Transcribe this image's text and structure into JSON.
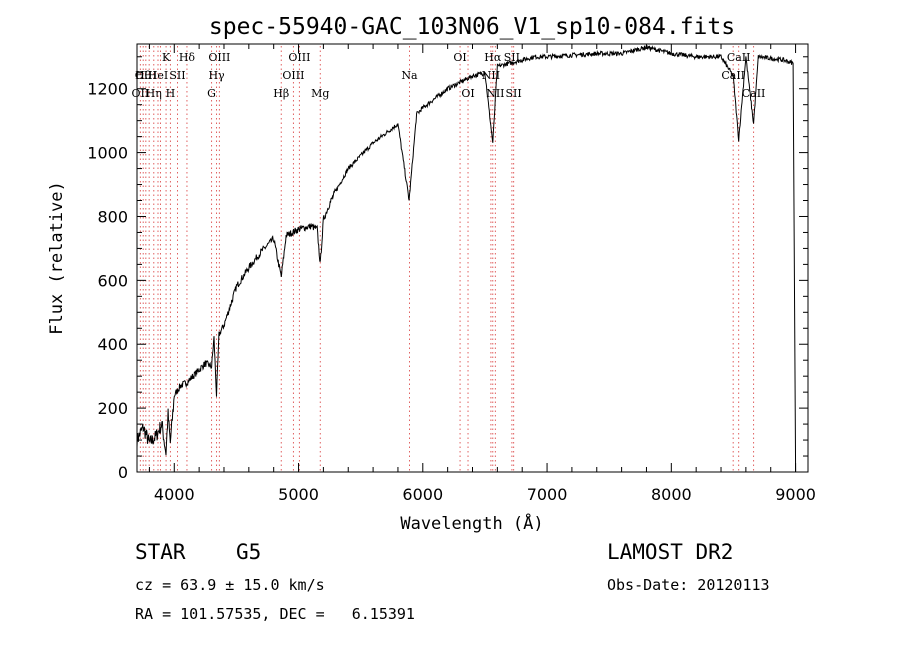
{
  "chart_data": {
    "type": "line",
    "title": "spec-55940-GAC_103N06_V1_sp10-084.fits",
    "xlabel": "Wavelength (Å)",
    "ylabel": "Flux (relative)",
    "xlim": [
      3700,
      9100
    ],
    "ylim": [
      0,
      1340
    ],
    "x_ticks": [
      4000,
      5000,
      6000,
      7000,
      8000,
      9000
    ],
    "y_ticks": [
      0,
      200,
      400,
      600,
      800,
      1000,
      1200
    ],
    "grid": false,
    "line_color": "#000000",
    "marker_color": "#e06060",
    "series": [
      {
        "x": [
          3700,
          3750,
          3800,
          3850,
          3900,
          3933,
          3950,
          3968,
          4000,
          4050,
          4100,
          4150,
          4200,
          4250,
          4300,
          4320,
          4340,
          4360,
          4400,
          4450,
          4500,
          4600,
          4700,
          4800,
          4861,
          4900,
          5000,
          5100,
          5150,
          5175,
          5200,
          5250,
          5300,
          5400,
          5500,
          5600,
          5700,
          5800,
          5890,
          5950,
          6000,
          6100,
          6200,
          6300,
          6400,
          6500,
          6563,
          6600,
          6700,
          6800,
          6900,
          7000,
          7200,
          7400,
          7600,
          7800,
          8000,
          8200,
          8400,
          8498,
          8542,
          8600,
          8662,
          8700,
          8800,
          8900,
          8980,
          9000
        ],
        "y": [
          100,
          140,
          90,
          110,
          150,
          60,
          180,
          90,
          240,
          270,
          280,
          300,
          320,
          340,
          330,
          420,
          240,
          430,
          460,
          520,
          580,
          640,
          690,
          730,
          610,
          740,
          760,
          770,
          760,
          650,
          790,
          840,
          880,
          950,
          990,
          1030,
          1060,
          1090,
          850,
          1120,
          1140,
          1170,
          1200,
          1220,
          1240,
          1250,
          1030,
          1270,
          1280,
          1290,
          1300,
          1300,
          1305,
          1310,
          1310,
          1330,
          1310,
          1300,
          1300,
          1240,
          1040,
          1300,
          1090,
          1300,
          1295,
          1290,
          1280,
          0
        ]
      }
    ],
    "lines": [
      {
        "x": 3727,
        "label": "OII",
        "row": 2
      },
      {
        "x": 3750,
        "label": "Hθ",
        "row": 1
      },
      {
        "x": 3771,
        "label": "OIII",
        "row": 1
      },
      {
        "x": 3798,
        "label": "",
        "row": 0
      },
      {
        "x": 3835,
        "label": "Hη",
        "row": 2
      },
      {
        "x": 3869,
        "label": "HeI",
        "row": 1
      },
      {
        "x": 3889,
        "label": "",
        "row": 0
      },
      {
        "x": 3934,
        "label": "K",
        "row": 0
      },
      {
        "x": 3969,
        "label": "H",
        "row": 2
      },
      {
        "x": 4026,
        "label": "SII",
        "row": 1
      },
      {
        "x": 4102,
        "label": "Hδ",
        "row": 0
      },
      {
        "x": 4300,
        "label": "G",
        "row": 2
      },
      {
        "x": 4340,
        "label": "Hγ",
        "row": 1
      },
      {
        "x": 4363,
        "label": "OIII",
        "row": 0
      },
      {
        "x": 4861,
        "label": "Hβ",
        "row": 2
      },
      {
        "x": 4959,
        "label": "OIII",
        "row": 1
      },
      {
        "x": 5007,
        "label": "OIII",
        "row": 0
      },
      {
        "x": 5175,
        "label": "Mg",
        "row": 2
      },
      {
        "x": 5893,
        "label": "Na",
        "row": 1
      },
      {
        "x": 6300,
        "label": "OI",
        "row": 0
      },
      {
        "x": 6364,
        "label": "OI",
        "row": 2
      },
      {
        "x": 6548,
        "label": "NII",
        "row": 1
      },
      {
        "x": 6563,
        "label": "Hα",
        "row": 0
      },
      {
        "x": 6584,
        "label": "NII",
        "row": 2
      },
      {
        "x": 6717,
        "label": "SII",
        "row": 0
      },
      {
        "x": 6731,
        "label": "SII",
        "row": 2
      },
      {
        "x": 8498,
        "label": "CaII",
        "row": 1
      },
      {
        "x": 8542,
        "label": "CaII",
        "row": 0
      },
      {
        "x": 8662,
        "label": "CaII",
        "row": 2
      }
    ]
  },
  "info": {
    "object_class": "STAR",
    "subclass": "G5",
    "survey": "LAMOST DR2",
    "redshift": "cz = 63.9 ± 15.0 km/s",
    "obs_date": "Obs-Date: 20120113",
    "coords": "RA = 101.57535, DEC =   6.15391"
  }
}
